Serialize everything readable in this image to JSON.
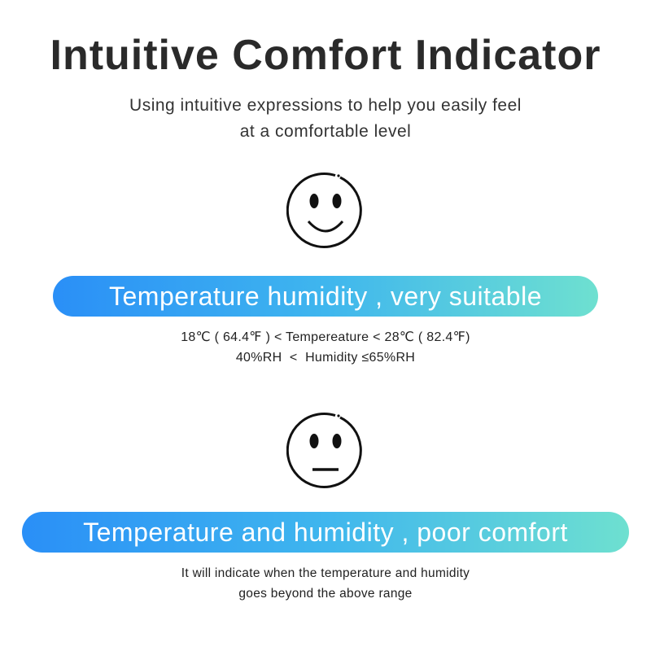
{
  "title": "Intuitive Comfort Indicator",
  "subtitle": [
    "Using intuitive expressions to help you easily feel",
    "at a comfortable level"
  ],
  "good": {
    "icon": "smiley-face-icon",
    "label": "Temperature humidity , very suitable",
    "ranges": [
      "18℃ ( 64.4℉ ) < Tempereature < 28℃ ( 82.4℉)",
      "40%RH  <  Humidity ≤65%RH"
    ]
  },
  "poor": {
    "icon": "neutral-face-icon",
    "label": "Temperature and humidity , poor comfort",
    "note": [
      "It will indicate when the temperature and humidity",
      "goes beyond the above range"
    ]
  },
  "colors": {
    "gradient_start": "#2a8ff7",
    "gradient_end": "#6ee0d0"
  }
}
